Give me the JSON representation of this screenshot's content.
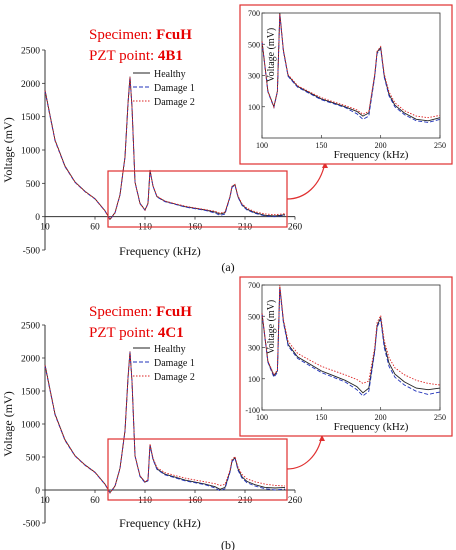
{
  "chart_data": [
    {
      "type": "line",
      "panel_label": "(a)",
      "specimen_label": "Specimen:",
      "specimen": "FcuH",
      "pzt_label": "PZT point:",
      "pzt": "4B1",
      "xlabel": "Frequency (kHz)",
      "ylabel": "Voltage (mV)",
      "xlim": [
        10,
        260
      ],
      "ylim": [
        -500,
        2500
      ],
      "xticks": [
        "10",
        "60",
        "110",
        "160",
        "210",
        "260"
      ],
      "yticks": [
        "-500",
        "0",
        "500",
        "1000",
        "1500",
        "2000",
        "2500"
      ],
      "legend": {
        "placement": "right",
        "entries": [
          "Healthy",
          "Damage 1",
          "Damage 2"
        ]
      },
      "x": [
        10,
        20,
        30,
        40,
        50,
        60,
        70,
        75,
        80,
        85,
        90,
        93,
        95,
        97,
        100,
        105,
        110,
        113,
        115,
        118,
        122,
        130,
        140,
        150,
        160,
        170,
        180,
        185,
        190,
        195,
        197,
        200,
        203,
        207,
        212,
        220,
        230,
        240,
        250
      ],
      "series": [
        {
          "name": "Healthy",
          "color": "#222222",
          "values": [
            1900,
            1150,
            760,
            520,
            380,
            270,
            90,
            -40,
            60,
            330,
            900,
            1700,
            2100,
            1650,
            520,
            200,
            100,
            200,
            700,
            460,
            300,
            230,
            190,
            150,
            125,
            100,
            70,
            40,
            60,
            300,
            450,
            480,
            300,
            180,
            110,
            60,
            20,
            10,
            30
          ]
        },
        {
          "name": "Damage 1",
          "color": "#2233bb",
          "values": [
            1880,
            1140,
            750,
            515,
            375,
            265,
            85,
            -45,
            55,
            325,
            890,
            1690,
            2090,
            1640,
            515,
            195,
            95,
            195,
            690,
            455,
            295,
            225,
            185,
            145,
            120,
            95,
            55,
            20,
            40,
            290,
            440,
            470,
            290,
            170,
            100,
            50,
            10,
            0,
            20
          ]
        },
        {
          "name": "Damage 2",
          "color": "#dd2222",
          "values": [
            1890,
            1145,
            755,
            518,
            378,
            268,
            88,
            -42,
            58,
            328,
            895,
            1695,
            2095,
            1645,
            518,
            198,
            98,
            198,
            695,
            462,
            305,
            235,
            195,
            158,
            132,
            108,
            80,
            52,
            70,
            305,
            455,
            485,
            310,
            195,
            125,
            75,
            40,
            30,
            45
          ]
        }
      ],
      "inset": {
        "xlim": [
          100,
          250
        ],
        "ylim": [
          -100,
          700
        ],
        "xticks": [
          "100",
          "150",
          "200",
          "250"
        ],
        "yticks": [
          "100",
          "300",
          "500",
          "700"
        ],
        "xlabel": "Frequency (kHz)",
        "ylabel": "Voltage (mV)",
        "source_window": {
          "xlim": [
            100,
            250
          ],
          "ylim": [
            -100,
            700
          ]
        }
      }
    },
    {
      "type": "line",
      "panel_label": "(b)",
      "specimen_label": "Specimen:",
      "specimen": "FcuH",
      "pzt_label": "PZT point:",
      "pzt": "4C1",
      "xlabel": "Frequency (kHz)",
      "ylabel": "Voltage (mV)",
      "xlim": [
        10,
        260
      ],
      "ylim": [
        -500,
        2500
      ],
      "xticks": [
        "10",
        "60",
        "110",
        "160",
        "210",
        "260"
      ],
      "yticks": [
        "-500",
        "0",
        "500",
        "1000",
        "1500",
        "2000",
        "2500"
      ],
      "legend": {
        "placement": "right",
        "entries": [
          "Healthy",
          "Damage 1",
          "Damage 2"
        ]
      },
      "x": [
        10,
        20,
        30,
        40,
        50,
        60,
        70,
        75,
        80,
        85,
        90,
        93,
        95,
        97,
        100,
        105,
        110,
        113,
        115,
        118,
        122,
        130,
        140,
        150,
        160,
        170,
        180,
        185,
        190,
        195,
        197,
        200,
        203,
        207,
        212,
        220,
        230,
        240,
        250
      ],
      "series": [
        {
          "name": "Healthy",
          "color": "#222222",
          "values": [
            1900,
            1150,
            760,
            520,
            380,
            270,
            90,
            -40,
            60,
            330,
            900,
            1700,
            2100,
            1650,
            520,
            210,
            120,
            150,
            690,
            470,
            320,
            240,
            195,
            150,
            120,
            90,
            50,
            10,
            40,
            280,
            440,
            490,
            320,
            200,
            130,
            80,
            40,
            30,
            40
          ]
        },
        {
          "name": "Damage 1",
          "color": "#2233bb",
          "values": [
            1880,
            1140,
            750,
            515,
            375,
            265,
            85,
            -45,
            55,
            325,
            890,
            1690,
            2090,
            1640,
            515,
            205,
            110,
            140,
            680,
            460,
            310,
            230,
            185,
            140,
            110,
            80,
            30,
            -10,
            20,
            270,
            430,
            480,
            300,
            180,
            110,
            60,
            20,
            0,
            15
          ]
        },
        {
          "name": "Damage 2",
          "color": "#dd2222",
          "values": [
            1890,
            1145,
            755,
            518,
            378,
            268,
            88,
            -42,
            58,
            328,
            895,
            1695,
            2095,
            1645,
            518,
            215,
            125,
            155,
            700,
            480,
            340,
            262,
            220,
            180,
            152,
            125,
            95,
            70,
            85,
            300,
            460,
            505,
            345,
            235,
            170,
            125,
            90,
            70,
            60
          ]
        }
      ],
      "inset": {
        "xlim": [
          100,
          250
        ],
        "ylim": [
          -100,
          700
        ],
        "xticks": [
          "100",
          "150",
          "200",
          "250"
        ],
        "yticks": [
          "-100",
          "100",
          "300",
          "500",
          "700"
        ],
        "xlabel": "Frequency (kHz)",
        "ylabel": "Voltage (mV)",
        "source_window": {
          "xlim": [
            100,
            250
          ],
          "ylim": [
            -100,
            700
          ]
        }
      }
    }
  ]
}
